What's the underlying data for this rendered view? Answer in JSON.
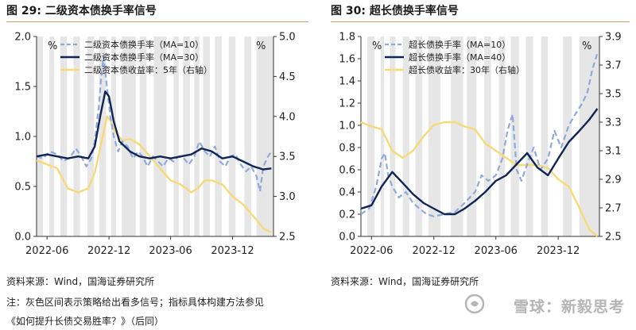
{
  "figures": [
    {
      "title": "图 29:  二级资本债换手率信号"
    },
    {
      "title": "图 30:  超长债换手率信号"
    }
  ],
  "footer": {
    "source_left": "资料来源：Wind，国海证券研究所",
    "source_right": "资料来源：Wind，国海证券研究所",
    "note": "注：灰色区间表示策略给出看多信号；指标具体构建方法参见",
    "note2": "《如何提升长债交易胜率？》（后同）"
  },
  "watermark": "雪球：新毅思考",
  "colors": {
    "ma_short": "#8fa9dc",
    "ma_long": "#0f2556",
    "yield": "#f7d978",
    "shade": "#e6e6e6",
    "title_rule": "#c9a06a"
  },
  "chart_data": [
    {
      "type": "line",
      "title": "图 29:  二级资本债换手率信号",
      "x_start": "2022-05-01",
      "x_end": "2024-03-31",
      "xticks": [
        "2022-06",
        "2022-12",
        "2023-06",
        "2023-12"
      ],
      "ylim": [
        0,
        2.0
      ],
      "yticks": [
        "0.0",
        "0.5",
        "1.0",
        "1.5",
        "2.0"
      ],
      "y2lim": [
        2.5,
        5.0
      ],
      "y2ticks": [
        "2.5",
        "3.0",
        "3.5",
        "4.0",
        "4.5",
        "5.0"
      ],
      "ylabel": "%",
      "y2label": "%",
      "legend_position": "top-center",
      "series": [
        {
          "name": "二级资本债换手率（MA=10）",
          "style": "dashed",
          "axis": "left",
          "points": [
            [
              "2022-05-01",
              0.8
            ],
            [
              "2022-05-20",
              0.78
            ],
            [
              "2022-06-10",
              0.85
            ],
            [
              "2022-07-01",
              0.82
            ],
            [
              "2022-07-20",
              0.75
            ],
            [
              "2022-08-10",
              0.8
            ],
            [
              "2022-08-25",
              0.88
            ],
            [
              "2022-09-10",
              0.8
            ],
            [
              "2022-09-25",
              0.7
            ],
            [
              "2022-10-10",
              0.78
            ],
            [
              "2022-10-20",
              0.95
            ],
            [
              "2022-11-01",
              1.3
            ],
            [
              "2022-11-08",
              1.6
            ],
            [
              "2022-11-15",
              1.8
            ],
            [
              "2022-11-25",
              1.5
            ],
            [
              "2022-12-05",
              1.2
            ],
            [
              "2022-12-15",
              1.0
            ],
            [
              "2022-12-28",
              0.85
            ],
            [
              "2023-01-10",
              0.95
            ],
            [
              "2023-01-25",
              0.9
            ],
            [
              "2023-02-10",
              0.78
            ],
            [
              "2023-02-25",
              0.85
            ],
            [
              "2023-03-10",
              0.8
            ],
            [
              "2023-03-25",
              0.7
            ],
            [
              "2023-04-10",
              0.8
            ],
            [
              "2023-04-25",
              0.75
            ],
            [
              "2023-05-10",
              0.7
            ],
            [
              "2023-05-25",
              0.78
            ],
            [
              "2023-06-10",
              0.75
            ],
            [
              "2023-06-25",
              0.8
            ],
            [
              "2023-07-10",
              0.78
            ],
            [
              "2023-07-25",
              0.72
            ],
            [
              "2023-08-10",
              0.8
            ],
            [
              "2023-08-25",
              0.95
            ],
            [
              "2023-09-10",
              0.85
            ],
            [
              "2023-09-25",
              0.8
            ],
            [
              "2023-10-10",
              0.9
            ],
            [
              "2023-10-25",
              0.75
            ],
            [
              "2023-11-10",
              0.7
            ],
            [
              "2023-11-25",
              0.8
            ],
            [
              "2023-12-10",
              0.82
            ],
            [
              "2023-12-25",
              0.72
            ],
            [
              "2024-01-10",
              0.65
            ],
            [
              "2024-01-25",
              0.7
            ],
            [
              "2024-02-10",
              0.6
            ],
            [
              "2024-02-20",
              0.45
            ],
            [
              "2024-03-01",
              0.7
            ],
            [
              "2024-03-15",
              0.8
            ],
            [
              "2024-03-25",
              0.85
            ]
          ]
        },
        {
          "name": "二级资本债换手率（MA=30）",
          "style": "solid",
          "axis": "left",
          "points": [
            [
              "2022-05-01",
              0.8
            ],
            [
              "2022-06-01",
              0.82
            ],
            [
              "2022-07-01",
              0.8
            ],
            [
              "2022-08-01",
              0.78
            ],
            [
              "2022-09-01",
              0.8
            ],
            [
              "2022-10-01",
              0.78
            ],
            [
              "2022-10-20",
              0.9
            ],
            [
              "2022-11-05",
              1.2
            ],
            [
              "2022-11-20",
              1.45
            ],
            [
              "2022-12-01",
              1.4
            ],
            [
              "2022-12-15",
              1.15
            ],
            [
              "2023-01-01",
              0.95
            ],
            [
              "2023-02-01",
              0.85
            ],
            [
              "2023-03-01",
              0.8
            ],
            [
              "2023-04-01",
              0.78
            ],
            [
              "2023-05-01",
              0.8
            ],
            [
              "2023-06-01",
              0.78
            ],
            [
              "2023-07-01",
              0.8
            ],
            [
              "2023-08-01",
              0.82
            ],
            [
              "2023-09-01",
              0.88
            ],
            [
              "2023-10-01",
              0.85
            ],
            [
              "2023-11-01",
              0.78
            ],
            [
              "2023-12-01",
              0.8
            ],
            [
              "2024-01-01",
              0.75
            ],
            [
              "2024-02-01",
              0.7
            ],
            [
              "2024-03-01",
              0.67
            ],
            [
              "2024-03-25",
              0.68
            ]
          ]
        },
        {
          "name": "二级资本债收益率：5年（右轴）",
          "style": "solid",
          "axis": "right",
          "points": [
            [
              "2022-05-01",
              3.45
            ],
            [
              "2022-06-01",
              3.4
            ],
            [
              "2022-07-01",
              3.35
            ],
            [
              "2022-08-01",
              3.1
            ],
            [
              "2022-09-01",
              3.05
            ],
            [
              "2022-10-01",
              3.1
            ],
            [
              "2022-10-20",
              3.3
            ],
            [
              "2022-11-10",
              3.7
            ],
            [
              "2022-11-25",
              4.0
            ],
            [
              "2022-12-05",
              3.95
            ],
            [
              "2022-12-20",
              3.8
            ],
            [
              "2023-01-10",
              3.7
            ],
            [
              "2023-02-01",
              3.72
            ],
            [
              "2023-03-01",
              3.65
            ],
            [
              "2023-04-01",
              3.5
            ],
            [
              "2023-05-01",
              3.35
            ],
            [
              "2023-06-01",
              3.2
            ],
            [
              "2023-07-01",
              3.15
            ],
            [
              "2023-08-01",
              3.05
            ],
            [
              "2023-08-20",
              3.1
            ],
            [
              "2023-09-10",
              3.2
            ],
            [
              "2023-10-01",
              3.2
            ],
            [
              "2023-11-01",
              3.15
            ],
            [
              "2023-12-01",
              3.0
            ],
            [
              "2024-01-01",
              2.9
            ],
            [
              "2024-02-01",
              2.75
            ],
            [
              "2024-03-01",
              2.6
            ],
            [
              "2024-03-25",
              2.55
            ]
          ]
        }
      ],
      "shaded_ranges": [
        [
          "2022-05-01",
          "2022-05-20"
        ],
        [
          "2022-06-08",
          "2022-06-22"
        ],
        [
          "2022-07-10",
          "2022-07-30"
        ],
        [
          "2022-08-18",
          "2022-09-06"
        ],
        [
          "2022-09-28",
          "2022-10-18"
        ],
        [
          "2022-11-02",
          "2022-11-22"
        ],
        [
          "2022-12-08",
          "2022-12-22"
        ],
        [
          "2023-01-08",
          "2023-02-18"
        ],
        [
          "2023-03-02",
          "2023-03-22"
        ],
        [
          "2023-04-12",
          "2023-05-20"
        ],
        [
          "2023-06-10",
          "2023-06-25"
        ],
        [
          "2023-07-08",
          "2023-07-28"
        ],
        [
          "2023-08-10",
          "2023-08-25"
        ],
        [
          "2023-09-05",
          "2023-09-25"
        ],
        [
          "2023-10-10",
          "2023-10-30"
        ],
        [
          "2023-11-20",
          "2023-12-10"
        ],
        [
          "2024-01-05",
          "2024-01-25"
        ],
        [
          "2024-02-10",
          "2024-03-31"
        ]
      ]
    },
    {
      "type": "line",
      "title": "图 30:  超长债换手率信号",
      "x_start": "2022-05-01",
      "x_end": "2024-03-31",
      "xticks": [
        "2022-06",
        "2022-12",
        "2023-06",
        "2023-12"
      ],
      "ylim": [
        0,
        1.8
      ],
      "yticks": [
        "0.0",
        "0.2",
        "0.4",
        "0.6",
        "0.8",
        "1.0",
        "1.2",
        "1.4",
        "1.6",
        "1.8"
      ],
      "y2lim": [
        2.5,
        3.9
      ],
      "y2ticks": [
        "2.5",
        "2.7",
        "2.9",
        "3.1",
        "3.3",
        "3.5",
        "3.7",
        "3.9"
      ],
      "ylabel": "%",
      "y2label": "%",
      "legend_position": "top-center",
      "series": [
        {
          "name": "超长债换手率（MA=10）",
          "style": "dashed",
          "axis": "left",
          "points": [
            [
              "2022-05-01",
              0.2
            ],
            [
              "2022-05-25",
              0.25
            ],
            [
              "2022-06-15",
              0.45
            ],
            [
              "2022-07-01",
              0.7
            ],
            [
              "2022-07-10",
              0.75
            ],
            [
              "2022-07-20",
              0.55
            ],
            [
              "2022-08-01",
              0.45
            ],
            [
              "2022-08-20",
              0.35
            ],
            [
              "2022-09-10",
              0.4
            ],
            [
              "2022-10-01",
              0.3
            ],
            [
              "2022-10-20",
              0.25
            ],
            [
              "2022-11-10",
              0.2
            ],
            [
              "2022-12-01",
              0.18
            ],
            [
              "2023-01-01",
              0.2
            ],
            [
              "2023-02-01",
              0.22
            ],
            [
              "2023-03-01",
              0.3
            ],
            [
              "2023-04-01",
              0.4
            ],
            [
              "2023-04-20",
              0.55
            ],
            [
              "2023-05-10",
              0.5
            ],
            [
              "2023-06-01",
              0.55
            ],
            [
              "2023-06-20",
              0.7
            ],
            [
              "2023-07-05",
              0.95
            ],
            [
              "2023-07-20",
              1.1
            ],
            [
              "2023-08-01",
              0.6
            ],
            [
              "2023-08-15",
              0.5
            ],
            [
              "2023-09-01",
              0.65
            ],
            [
              "2023-09-20",
              0.8
            ],
            [
              "2023-10-10",
              0.6
            ],
            [
              "2023-11-01",
              0.7
            ],
            [
              "2023-11-20",
              0.95
            ],
            [
              "2023-12-10",
              0.8
            ],
            [
              "2024-01-01",
              1.0
            ],
            [
              "2024-01-20",
              1.1
            ],
            [
              "2024-02-10",
              1.2
            ],
            [
              "2024-02-25",
              1.3
            ],
            [
              "2024-03-10",
              1.5
            ],
            [
              "2024-03-25",
              1.65
            ]
          ]
        },
        {
          "name": "超长债换手率（MA=40）",
          "style": "solid",
          "axis": "left",
          "points": [
            [
              "2022-05-01",
              0.25
            ],
            [
              "2022-06-01",
              0.28
            ],
            [
              "2022-07-01",
              0.45
            ],
            [
              "2022-08-01",
              0.58
            ],
            [
              "2022-09-01",
              0.48
            ],
            [
              "2022-10-01",
              0.38
            ],
            [
              "2022-11-01",
              0.3
            ],
            [
              "2022-12-01",
              0.25
            ],
            [
              "2023-01-01",
              0.2
            ],
            [
              "2023-02-01",
              0.2
            ],
            [
              "2023-03-01",
              0.25
            ],
            [
              "2023-04-01",
              0.32
            ],
            [
              "2023-05-01",
              0.4
            ],
            [
              "2023-06-01",
              0.5
            ],
            [
              "2023-07-01",
              0.55
            ],
            [
              "2023-08-01",
              0.65
            ],
            [
              "2023-09-01",
              0.75
            ],
            [
              "2023-10-01",
              0.62
            ],
            [
              "2023-11-01",
              0.55
            ],
            [
              "2023-12-01",
              0.7
            ],
            [
              "2024-01-01",
              0.85
            ],
            [
              "2024-02-01",
              0.95
            ],
            [
              "2024-03-01",
              1.05
            ],
            [
              "2024-03-25",
              1.15
            ]
          ]
        },
        {
          "name": "超长债收益率：30年（右轴）",
          "style": "solid",
          "axis": "right",
          "points": [
            [
              "2022-05-01",
              3.3
            ],
            [
              "2022-06-01",
              3.27
            ],
            [
              "2022-07-01",
              3.25
            ],
            [
              "2022-08-01",
              3.1
            ],
            [
              "2022-09-01",
              3.05
            ],
            [
              "2022-10-01",
              3.1
            ],
            [
              "2022-11-01",
              3.2
            ],
            [
              "2022-12-01",
              3.28
            ],
            [
              "2023-01-01",
              3.3
            ],
            [
              "2023-02-01",
              3.3
            ],
            [
              "2023-03-01",
              3.27
            ],
            [
              "2023-04-01",
              3.25
            ],
            [
              "2023-05-01",
              3.15
            ],
            [
              "2023-06-01",
              3.1
            ],
            [
              "2023-07-01",
              3.05
            ],
            [
              "2023-08-01",
              3.0
            ],
            [
              "2023-09-01",
              3.0
            ],
            [
              "2023-10-01",
              3.0
            ],
            [
              "2023-11-01",
              2.98
            ],
            [
              "2023-12-01",
              2.9
            ],
            [
              "2024-01-01",
              2.85
            ],
            [
              "2024-02-01",
              2.7
            ],
            [
              "2024-03-01",
              2.55
            ],
            [
              "2024-03-25",
              2.5
            ]
          ]
        }
      ],
      "shaded_ranges": [
        [
          "2022-05-20",
          "2022-06-10"
        ],
        [
          "2022-06-28",
          "2022-07-08"
        ],
        [
          "2022-07-25",
          "2022-08-10"
        ],
        [
          "2022-09-01",
          "2022-09-20"
        ],
        [
          "2022-10-08",
          "2022-10-28"
        ],
        [
          "2022-11-15",
          "2022-12-20"
        ],
        [
          "2023-01-20",
          "2023-02-25"
        ],
        [
          "2023-03-08",
          "2023-04-05"
        ],
        [
          "2023-04-28",
          "2023-05-18"
        ],
        [
          "2023-06-10",
          "2023-06-28"
        ],
        [
          "2023-07-15",
          "2023-08-08"
        ],
        [
          "2023-08-28",
          "2023-09-18"
        ],
        [
          "2023-10-12",
          "2023-11-01"
        ],
        [
          "2023-12-15",
          "2024-01-10"
        ],
        [
          "2024-02-01",
          "2024-03-31"
        ]
      ]
    }
  ]
}
